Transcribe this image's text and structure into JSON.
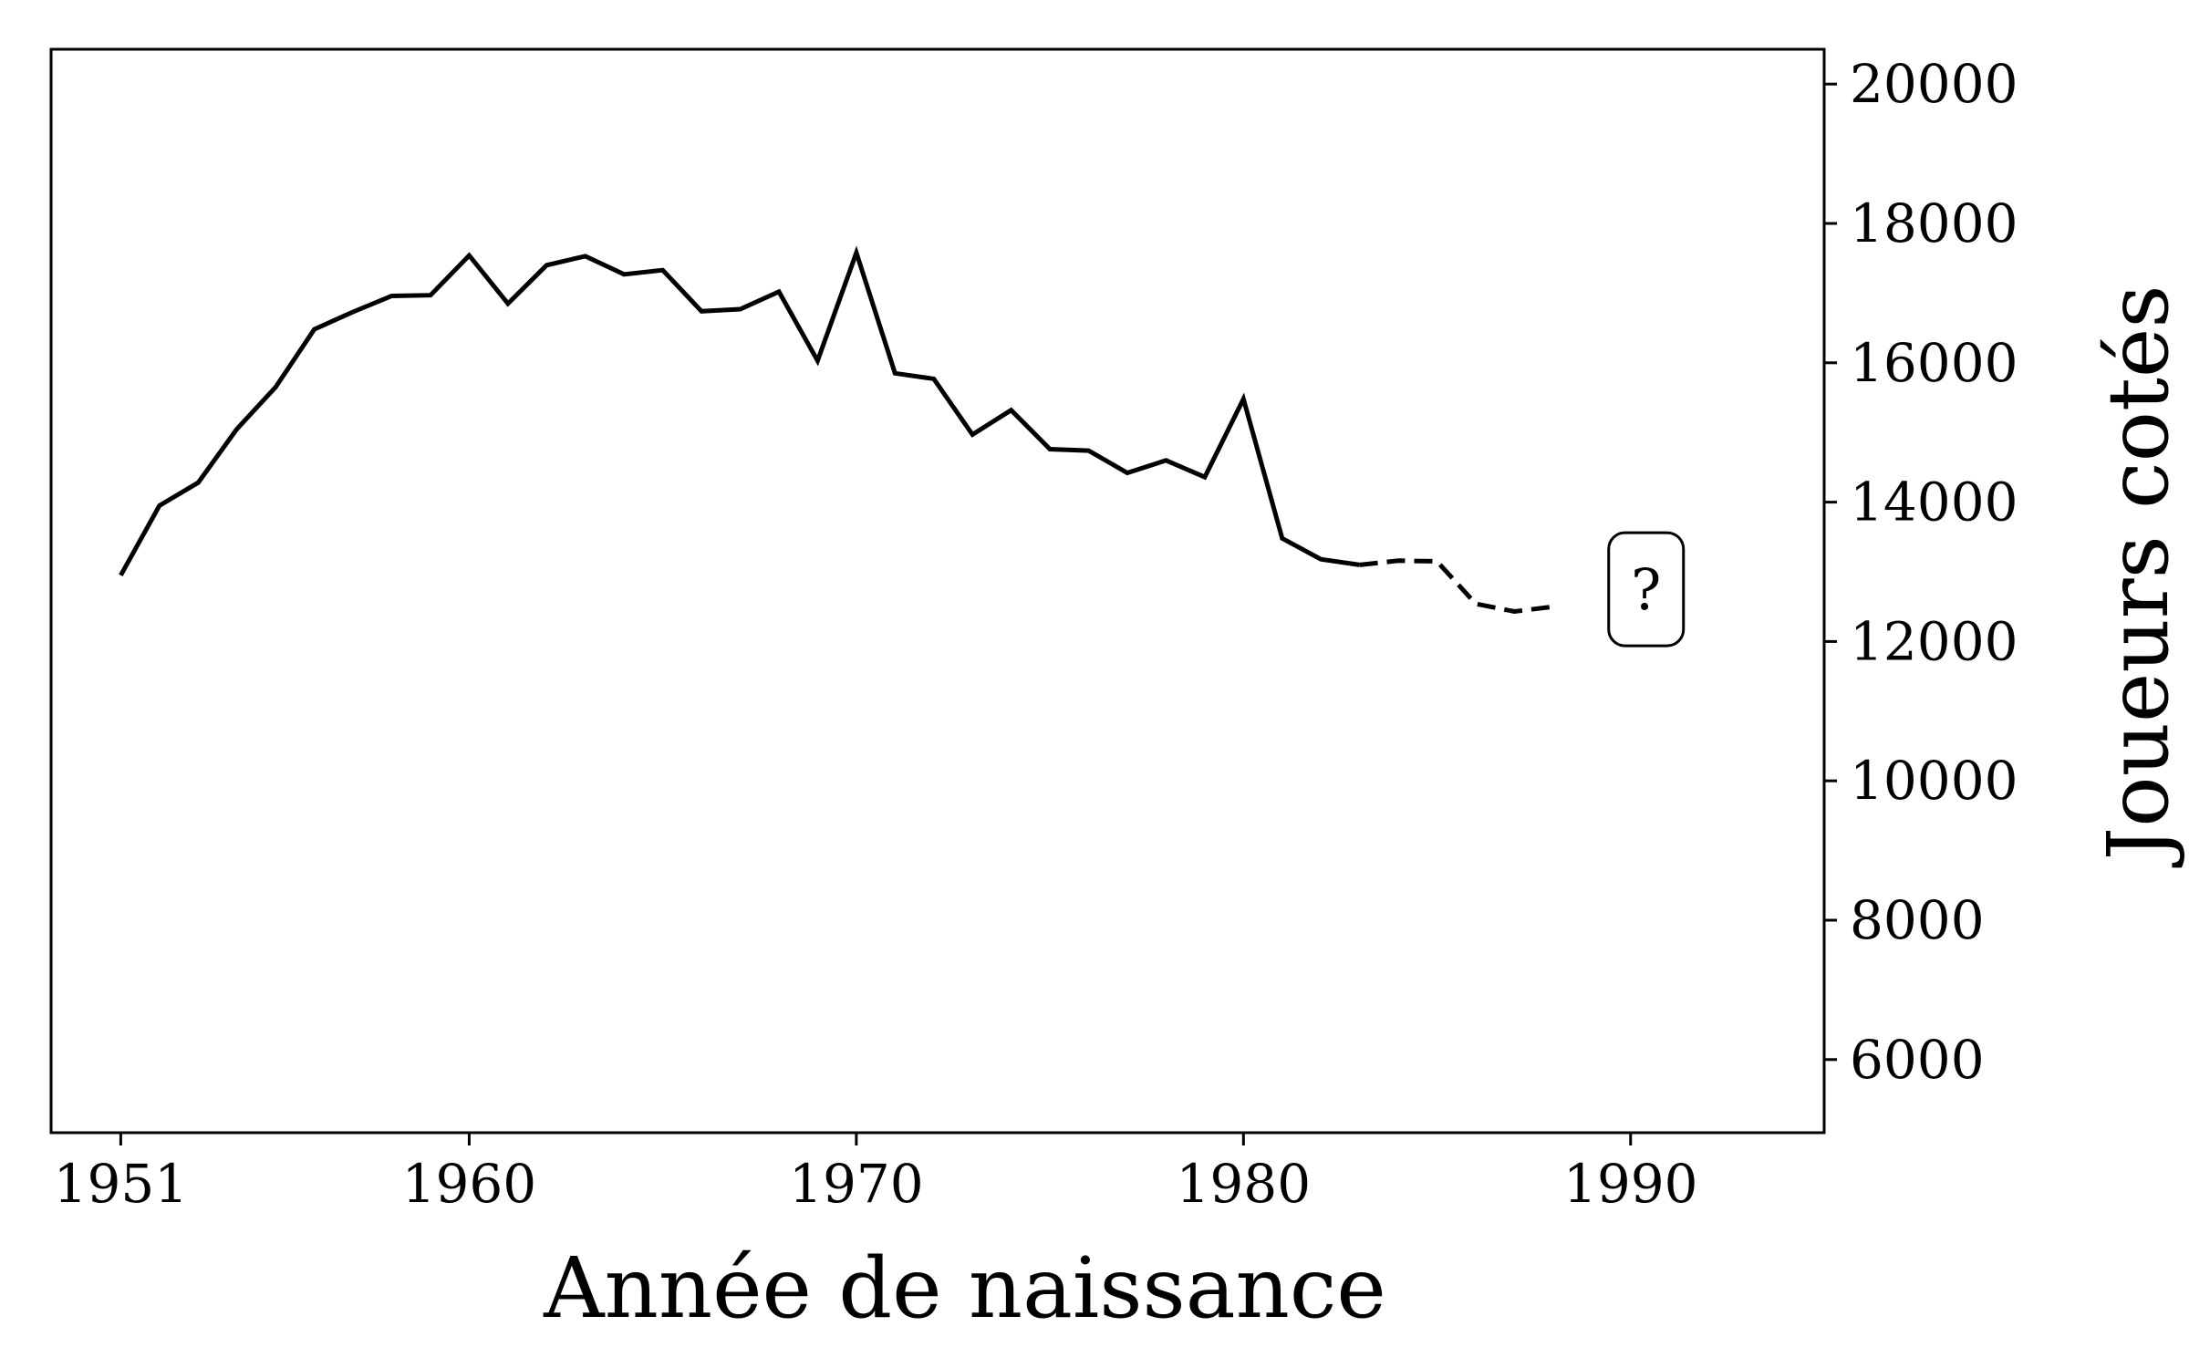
{
  "chart_data": {
    "type": "line",
    "xlabel": "Année de naissance",
    "ylabel": "Joueurs cotés",
    "xlim": [
      1949.2,
      1995
    ],
    "ylim": [
      4950,
      20500
    ],
    "x_ticks": [
      1951,
      1960,
      1970,
      1980,
      1990
    ],
    "y_ticks": [
      6000,
      8000,
      10000,
      12000,
      14000,
      16000,
      18000,
      20000
    ],
    "y_axis_side": "right",
    "grid": false,
    "series": [
      {
        "style": "solid",
        "x": [
          1951,
          1952,
          1953,
          1954,
          1955,
          1956,
          1957,
          1958,
          1959,
          1960,
          1961,
          1962,
          1963,
          1964,
          1965,
          1966,
          1967,
          1968,
          1969,
          1970,
          1971,
          1972,
          1973,
          1974,
          1975,
          1976,
          1977,
          1978,
          1979,
          1980,
          1981,
          1982,
          1983
        ],
        "y": [
          12950,
          13950,
          14280,
          15050,
          15650,
          16480,
          16730,
          16960,
          16970,
          17540,
          16850,
          17400,
          17530,
          17270,
          17330,
          16740,
          16770,
          17020,
          16030,
          17580,
          15850,
          15770,
          14970,
          15320,
          14760,
          14740,
          14420,
          14600,
          14360,
          15480,
          13480,
          13180,
          13100
        ]
      },
      {
        "style": "dashed",
        "x": [
          1983,
          1984,
          1985,
          1986,
          1987,
          1988
        ],
        "y": [
          13100,
          13160,
          13150,
          12540,
          12430,
          12500
        ]
      }
    ],
    "annotation": {
      "text": "?",
      "x": 1990.4,
      "y": 12750
    }
  }
}
